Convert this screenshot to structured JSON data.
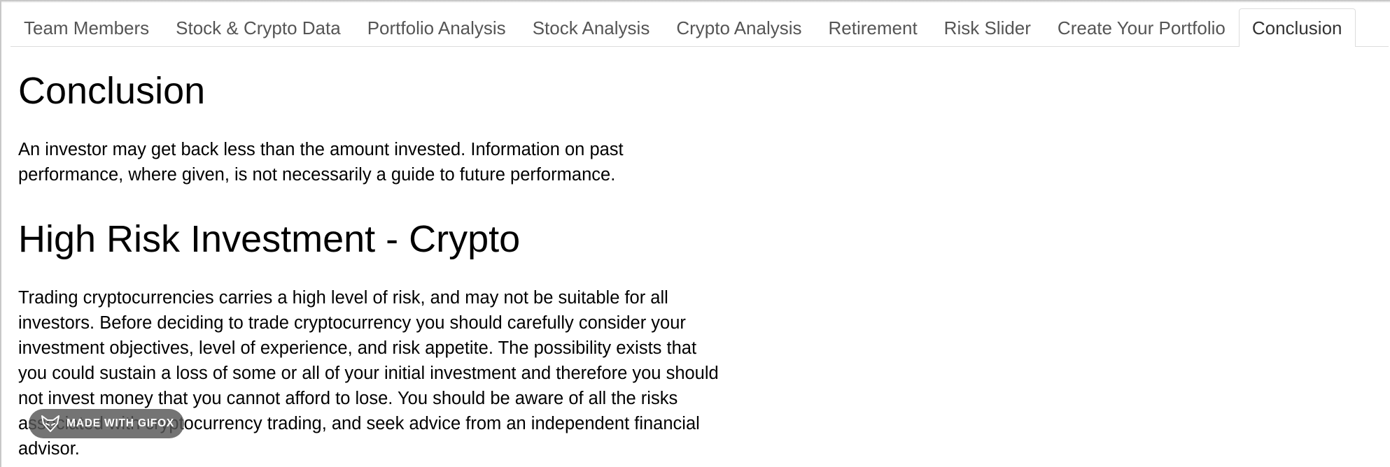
{
  "tabs": [
    {
      "label": "Team Members",
      "active": false
    },
    {
      "label": "Stock & Crypto Data",
      "active": false
    },
    {
      "label": "Portfolio Analysis",
      "active": false
    },
    {
      "label": "Stock Analysis",
      "active": false
    },
    {
      "label": "Crypto Analysis",
      "active": false
    },
    {
      "label": "Retirement",
      "active": false
    },
    {
      "label": "Risk Slider",
      "active": false
    },
    {
      "label": "Create Your Portfolio",
      "active": false
    },
    {
      "label": "Conclusion",
      "active": true
    }
  ],
  "main": {
    "conclusion_heading": "Conclusion",
    "conclusion_text": "An investor may get back less than the amount invested. Information on past performance, where given, is not necessarily a guide to future performance.",
    "risk_heading": "High Risk Investment - Crypto",
    "risk_text": "Trading cryptocurrencies carries a high level of risk, and may not be suitable for all investors. Before deciding to trade cryptocurrency you should carefully consider your investment objectives, level of experience, and risk appetite. The possibility exists that you could sustain a loss of some or all of your initial investment and therefore you should not invest money that you cannot afford to lose. You should be aware of all the risks associated with cryptocurrency trading, and seek advice from an independent financial advisor."
  },
  "watermark": {
    "text": "MADE WITH GIFOX",
    "icon": "fox-icon"
  },
  "colors": {
    "tab_text": "#555555",
    "active_tab_text": "#333333",
    "tab_border": "#dddddd",
    "body_text": "#000000",
    "watermark_bg": "#565656"
  }
}
